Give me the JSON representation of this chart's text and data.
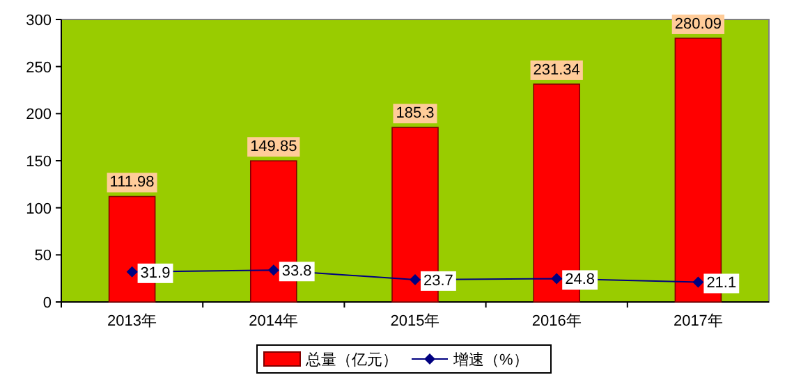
{
  "chart_data": {
    "type": "bar",
    "categories": [
      "2013年",
      "2014年",
      "2015年",
      "2016年",
      "2017年"
    ],
    "series": [
      {
        "name": "总量（亿元）",
        "color": "#ff0000",
        "values": [
          111.98,
          149.85,
          185.3,
          231.34,
          280.09
        ]
      },
      {
        "name": "增速（%）",
        "type": "line",
        "color": "#000080",
        "marker": "diamond",
        "values": [
          31.9,
          33.8,
          23.7,
          24.8,
          21.1
        ]
      }
    ],
    "ylim": [
      0,
      300
    ],
    "yticks": [
      0,
      50,
      100,
      150,
      200,
      250,
      300
    ],
    "data_labels": true,
    "legend": "bottom"
  }
}
